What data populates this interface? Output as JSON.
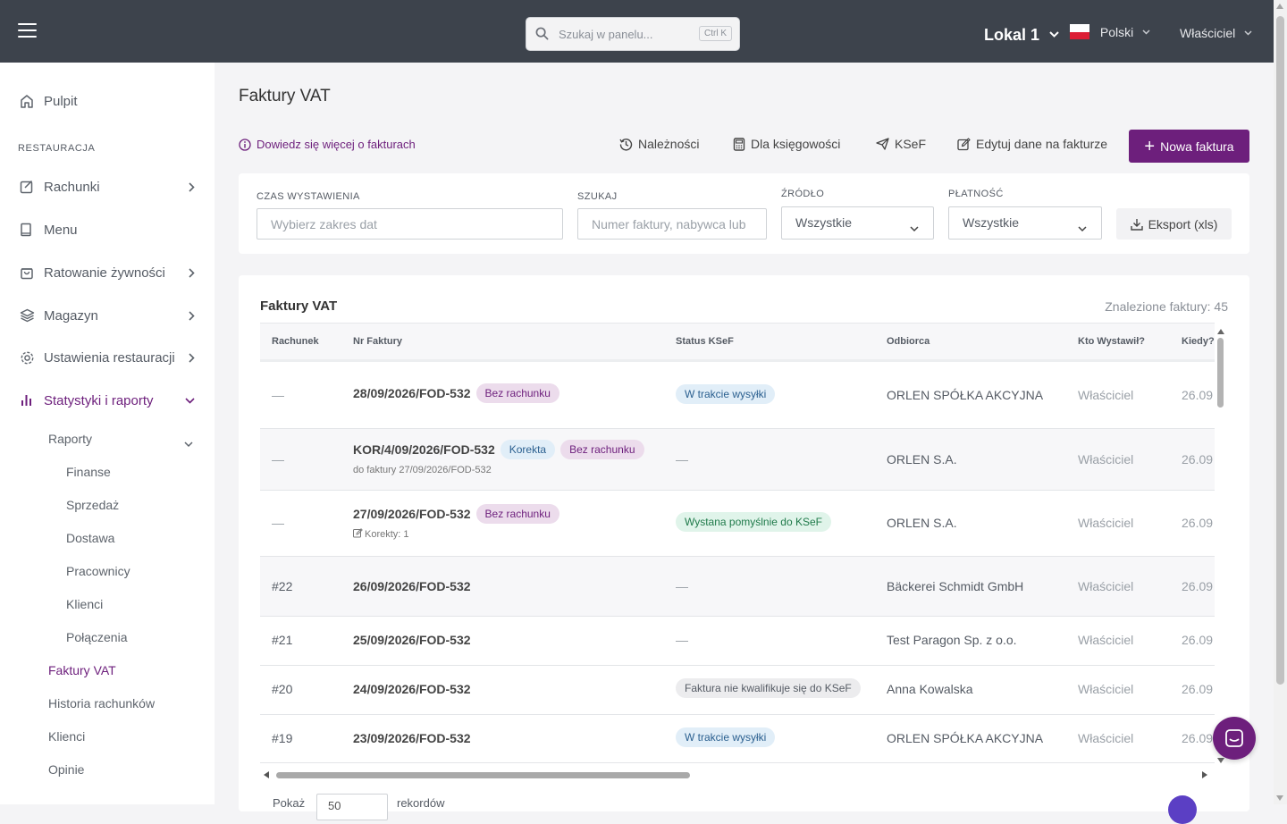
{
  "topbar": {
    "search_placeholder": "Szukaj w panelu...",
    "search_shortcut": "Ctrl K",
    "location": "Lokal 1",
    "language": "Polski",
    "user_role": "Właściciel"
  },
  "sidebar": {
    "dashboard": "Pulpit",
    "section_label": "RESTAURACJA",
    "items": [
      {
        "label": "Rachunki"
      },
      {
        "label": "Menu"
      },
      {
        "label": "Ratowanie żywności"
      },
      {
        "label": "Magazyn"
      },
      {
        "label": "Ustawienia restauracji"
      },
      {
        "label": "Statystyki i raporty"
      }
    ],
    "reports": {
      "label": "Raporty",
      "children": [
        "Finanse",
        "Sprzedaż",
        "Dostawa",
        "Pracownicy",
        "Klienci",
        "Połączenia"
      ]
    },
    "more": [
      "Faktury VAT",
      "Historia rachunków",
      "Klienci",
      "Opinie"
    ]
  },
  "page": {
    "title": "Faktury VAT",
    "learn_more": "Dowiedz się więcej o fakturach",
    "toolbar": {
      "receivables": "Należności",
      "accounting": "Dla księgowości",
      "ksef": "KSeF",
      "edit_invoice_data": "Edytuj dane na fakturze",
      "new_invoice": "Nowa faktura"
    }
  },
  "filters": {
    "issue_time_label": "CZAS WYSTAWIENIA",
    "issue_time_placeholder": "Wybierz zakres dat",
    "search_label": "SZUKAJ",
    "search_placeholder": "Numer faktury, nabywca lub",
    "source_label": "ŹRÓDŁO",
    "source_value": "Wszystkie",
    "payment_label": "PŁATNOŚĆ",
    "payment_value": "Wszystkie",
    "export_label": "Eksport (xls)"
  },
  "table": {
    "title": "Faktury VAT",
    "found": "Znalezione faktury: 45",
    "columns": [
      "Rachunek",
      "Nr Faktury",
      "Status KSeF",
      "Odbiorca",
      "Kto Wystawił?",
      "Kiedy?"
    ],
    "rows": [
      {
        "receipt": "—",
        "nr": "28/09/2026/FOD-532",
        "badges": [
          "Bez rachunku"
        ],
        "sub": "",
        "status": "W trakcie wysyłki",
        "recipient": "ORLEN SPÓŁKA AKCYJNA",
        "issuer": "Właściciel",
        "when": "26.09"
      },
      {
        "receipt": "—",
        "nr": "KOR/4/09/2026/FOD-532",
        "badges": [
          "Korekta",
          "Bez rachunku"
        ],
        "sub": "do faktury 27/09/2026/FOD-532",
        "status": "—",
        "recipient": "ORLEN S.A.",
        "issuer": "Właściciel",
        "when": "26.09"
      },
      {
        "receipt": "—",
        "nr": "27/09/2026/FOD-532",
        "badges": [
          "Bez rachunku"
        ],
        "sub": "Korekty: 1",
        "status": "Wystana pomyślnie do KSeF",
        "recipient": "ORLEN S.A.",
        "issuer": "Właściciel",
        "when": "26.09"
      },
      {
        "receipt": "#22",
        "nr": "26/09/2026/FOD-532",
        "badges": [],
        "sub": "",
        "status": "—",
        "recipient": "Bäckerei Schmidt GmbH",
        "issuer": "Właściciel",
        "when": "26.09"
      },
      {
        "receipt": "#21",
        "nr": "25/09/2026/FOD-532",
        "badges": [],
        "sub": "",
        "status": "—",
        "recipient": "Test Paragon Sp. z o.o.",
        "issuer": "Właściciel",
        "when": "26.09"
      },
      {
        "receipt": "#20",
        "nr": "24/09/2026/FOD-532",
        "badges": [],
        "sub": "",
        "status": "Faktura nie kwalifikuje się do KSeF",
        "recipient": "Anna Kowalska",
        "issuer": "Właściciel",
        "when": "26.09"
      },
      {
        "receipt": "#19",
        "nr": "23/09/2026/FOD-532",
        "badges": [],
        "sub": "",
        "status": "W trakcie wysyłki",
        "recipient": "ORLEN SPÓŁKA AKCYJNA",
        "issuer": "Właściciel",
        "when": "26.09"
      }
    ],
    "footer": {
      "show_label": "Pokaż",
      "per_page": "50",
      "records_label": "rekordów"
    }
  },
  "colors": {
    "accent": "#6d1f7c",
    "topbar": "#3d434c"
  }
}
